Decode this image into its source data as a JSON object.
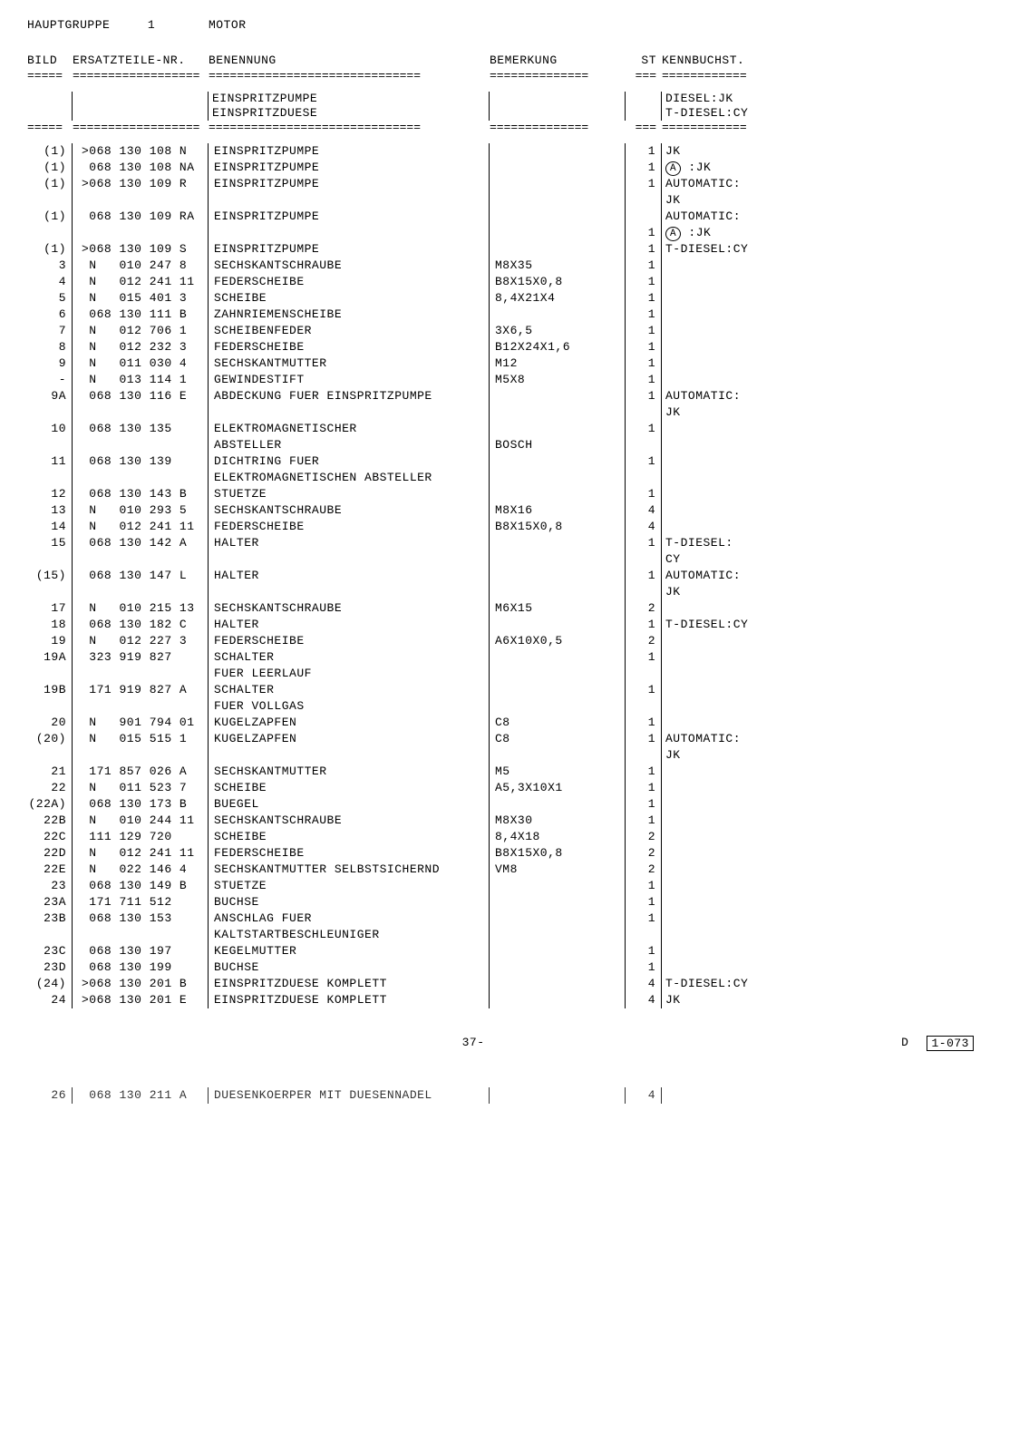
{
  "header": {
    "hauptgruppe_label": "HAUPTGRUPPE",
    "group_num": "1",
    "group_title": "MOTOR"
  },
  "columns": {
    "bild": "BILD",
    "ersatz": "ERSATZTEILE-NR.",
    "benen": "BENENNUNG",
    "bemerk": "BEMERKUNG",
    "st": "ST",
    "kenn": "KENNBUCHST."
  },
  "dividers": {
    "bild": "=====",
    "part": "==================",
    "benen": "==============================",
    "bemerk": "==============",
    "st": "===",
    "kenn": "============"
  },
  "section_header": {
    "l1_benen": "EINSPRITZPUMPE",
    "l1_kenn": "DIESEL:JK",
    "l2_benen": "EINSPRITZDUESE",
    "l2_kenn": "T-DIESEL:CY"
  },
  "rows": [
    {
      "bild": "(1)",
      "part": ">068 130 108 N",
      "benen": "EINSPRITZPUMPE",
      "bem": "",
      "st": "1",
      "kenn": "JK"
    },
    {
      "bild": "(1)",
      "part": " 068 130 108 NA",
      "benen": "EINSPRITZPUMPE",
      "bem": "",
      "st": "1",
      "kenn": "(A) :JK"
    },
    {
      "bild": "(1)",
      "part": ">068 130 109 R",
      "benen": "EINSPRITZPUMPE",
      "bem": "",
      "st": "1",
      "kenn": "AUTOMATIC:"
    },
    {
      "bild": "",
      "part": "",
      "benen": "",
      "bem": "",
      "st": "",
      "kenn": "JK"
    },
    {
      "bild": "(1)",
      "part": " 068 130 109 RA",
      "benen": "EINSPRITZPUMPE",
      "bem": "",
      "st": "",
      "kenn": "AUTOMATIC:"
    },
    {
      "bild": "",
      "part": "",
      "benen": "",
      "bem": "",
      "st": "1",
      "kenn": "(A) :JK"
    },
    {
      "bild": "(1)",
      "part": ">068 130 109 S",
      "benen": "EINSPRITZPUMPE",
      "bem": "",
      "st": "1",
      "kenn": "T-DIESEL:CY"
    },
    {
      "bild": "3",
      "part": " N   010 247 8",
      "benen": "SECHSKANTSCHRAUBE",
      "bem": "M8X35",
      "st": "1",
      "kenn": ""
    },
    {
      "bild": "4",
      "part": " N   012 241 11",
      "benen": "FEDERSCHEIBE",
      "bem": "B8X15X0,8",
      "st": "1",
      "kenn": ""
    },
    {
      "bild": "5",
      "part": " N   015 401 3",
      "benen": "SCHEIBE",
      "bem": "8,4X21X4",
      "st": "1",
      "kenn": ""
    },
    {
      "bild": "6",
      "part": " 068 130 111 B",
      "benen": "ZAHNRIEMENSCHEIBE",
      "bem": "",
      "st": "1",
      "kenn": ""
    },
    {
      "bild": "7",
      "part": " N   012 706 1",
      "benen": "SCHEIBENFEDER",
      "bem": "3X6,5",
      "st": "1",
      "kenn": ""
    },
    {
      "bild": "8",
      "part": " N   012 232 3",
      "benen": "FEDERSCHEIBE",
      "bem": "B12X24X1,6",
      "st": "1",
      "kenn": ""
    },
    {
      "bild": "9",
      "part": " N   011 030 4",
      "benen": "SECHSKANTMUTTER",
      "bem": "M12",
      "st": "1",
      "kenn": ""
    },
    {
      "bild": "-",
      "part": " N   013 114 1",
      "benen": "GEWINDESTIFT",
      "bem": "M5X8",
      "st": "1",
      "kenn": ""
    },
    {
      "bild": "9A",
      "part": " 068 130 116 E",
      "benen": "ABDECKUNG FUER EINSPRITZPUMPE",
      "bem": "",
      "st": "1",
      "kenn": "AUTOMATIC:"
    },
    {
      "bild": "",
      "part": "",
      "benen": "",
      "bem": "",
      "st": "",
      "kenn": "JK"
    },
    {
      "bild": "10",
      "part": " 068 130 135",
      "benen": "ELEKTROMAGNETISCHER",
      "bem": "",
      "st": "1",
      "kenn": ""
    },
    {
      "bild": "",
      "part": "",
      "benen": "ABSTELLER",
      "bem": "BOSCH",
      "st": "",
      "kenn": ""
    },
    {
      "bild": "11",
      "part": " 068 130 139",
      "benen": "DICHTRING FUER",
      "bem": "",
      "st": "1",
      "kenn": ""
    },
    {
      "bild": "",
      "part": "",
      "benen": "ELEKTROMAGNETISCHEN ABSTELLER",
      "bem": "",
      "st": "",
      "kenn": ""
    },
    {
      "bild": "12",
      "part": " 068 130 143 B",
      "benen": "STUETZE",
      "bem": "",
      "st": "1",
      "kenn": ""
    },
    {
      "bild": "13",
      "part": " N   010 293 5",
      "benen": "SECHSKANTSCHRAUBE",
      "bem": "M8X16",
      "st": "4",
      "kenn": ""
    },
    {
      "bild": "14",
      "part": " N   012 241 11",
      "benen": "FEDERSCHEIBE",
      "bem": "B8X15X0,8",
      "st": "4",
      "kenn": ""
    },
    {
      "bild": "15",
      "part": " 068 130 142 A",
      "benen": "HALTER",
      "bem": "",
      "st": "1",
      "kenn": "T-DIESEL:"
    },
    {
      "bild": "",
      "part": "",
      "benen": "",
      "bem": "",
      "st": "",
      "kenn": "CY"
    },
    {
      "bild": "(15)",
      "part": " 068 130 147 L",
      "benen": "HALTER",
      "bem": "",
      "st": "1",
      "kenn": "AUTOMATIC:"
    },
    {
      "bild": "",
      "part": "",
      "benen": "",
      "bem": "",
      "st": "",
      "kenn": "JK"
    },
    {
      "bild": "17",
      "part": " N   010 215 13",
      "benen": "SECHSKANTSCHRAUBE",
      "bem": "M6X15",
      "st": "2",
      "kenn": ""
    },
    {
      "bild": "18",
      "part": " 068 130 182 C",
      "benen": "HALTER",
      "bem": "",
      "st": "1",
      "kenn": "T-DIESEL:CY"
    },
    {
      "bild": "19",
      "part": " N   012 227 3",
      "benen": "FEDERSCHEIBE",
      "bem": "A6X10X0,5",
      "st": "2",
      "kenn": ""
    },
    {
      "bild": "19A",
      "part": " 323 919 827",
      "benen": "SCHALTER",
      "bem": "",
      "st": "1",
      "kenn": ""
    },
    {
      "bild": "",
      "part": "",
      "benen": "FUER LEERLAUF",
      "bem": "",
      "st": "",
      "kenn": ""
    },
    {
      "bild": "19B",
      "part": " 171 919 827 A",
      "benen": "SCHALTER",
      "bem": "",
      "st": "1",
      "kenn": ""
    },
    {
      "bild": "",
      "part": "",
      "benen": "FUER VOLLGAS",
      "bem": "",
      "st": "",
      "kenn": ""
    },
    {
      "bild": "20",
      "part": " N   901 794 01",
      "benen": "KUGELZAPFEN",
      "bem": "C8",
      "st": "1",
      "kenn": ""
    },
    {
      "bild": "(20)",
      "part": " N   015 515 1",
      "benen": "KUGELZAPFEN",
      "bem": "C8",
      "st": "1",
      "kenn": "AUTOMATIC:"
    },
    {
      "bild": "",
      "part": "",
      "benen": "",
      "bem": "",
      "st": "",
      "kenn": "JK"
    },
    {
      "bild": "21",
      "part": " 171 857 026 A",
      "benen": "SECHSKANTMUTTER",
      "bem": "M5",
      "st": "1",
      "kenn": ""
    },
    {
      "bild": "22",
      "part": " N   011 523 7",
      "benen": "SCHEIBE",
      "bem": "A5,3X10X1",
      "st": "1",
      "kenn": ""
    },
    {
      "bild": "(22A)",
      "part": " 068 130 173 B",
      "benen": "BUEGEL",
      "bem": "",
      "st": "1",
      "kenn": ""
    },
    {
      "bild": "22B",
      "part": " N   010 244 11",
      "benen": "SECHSKANTSCHRAUBE",
      "bem": "M8X30",
      "st": "1",
      "kenn": ""
    },
    {
      "bild": "22C",
      "part": " 111 129 720",
      "benen": "SCHEIBE",
      "bem": "8,4X18",
      "st": "2",
      "kenn": ""
    },
    {
      "bild": "22D",
      "part": " N   012 241 11",
      "benen": "FEDERSCHEIBE",
      "bem": "B8X15X0,8",
      "st": "2",
      "kenn": ""
    },
    {
      "bild": "22E",
      "part": " N   022 146 4",
      "benen": "SECHSKANTMUTTER SELBSTSICHERND",
      "bem": "VM8",
      "st": "2",
      "kenn": ""
    },
    {
      "bild": "23",
      "part": " 068 130 149 B",
      "benen": "STUETZE",
      "bem": "",
      "st": "1",
      "kenn": ""
    },
    {
      "bild": "23A",
      "part": " 171 711 512",
      "benen": "BUCHSE",
      "bem": "",
      "st": "1",
      "kenn": ""
    },
    {
      "bild": "23B",
      "part": " 068 130 153",
      "benen": "ANSCHLAG FUER",
      "bem": "",
      "st": "1",
      "kenn": ""
    },
    {
      "bild": "",
      "part": "",
      "benen": "KALTSTARTBESCHLEUNIGER",
      "bem": "",
      "st": "",
      "kenn": ""
    },
    {
      "bild": "23C",
      "part": " 068 130 197",
      "benen": "KEGELMUTTER",
      "bem": "",
      "st": "1",
      "kenn": ""
    },
    {
      "bild": "23D",
      "part": " 068 130 199",
      "benen": "BUCHSE",
      "bem": "",
      "st": "1",
      "kenn": ""
    },
    {
      "bild": "(24)",
      "part": ">068 130 201 B",
      "benen": "EINSPRITZDUESE KOMPLETT",
      "bem": "",
      "st": "4",
      "kenn": "T-DIESEL:CY"
    },
    {
      "bild": "24",
      "part": ">068 130 201 E",
      "benen": "EINSPRITZDUESE KOMPLETT",
      "bem": "",
      "st": "4",
      "kenn": "JK"
    }
  ],
  "footer": {
    "page": "37-",
    "d": "D",
    "ref": "1-073"
  },
  "cutoff": {
    "bild": "26",
    "part": " 068 130 211 A",
    "benen": "DUESENKOERPER MIT DUESENNADEL",
    "st": "4"
  }
}
